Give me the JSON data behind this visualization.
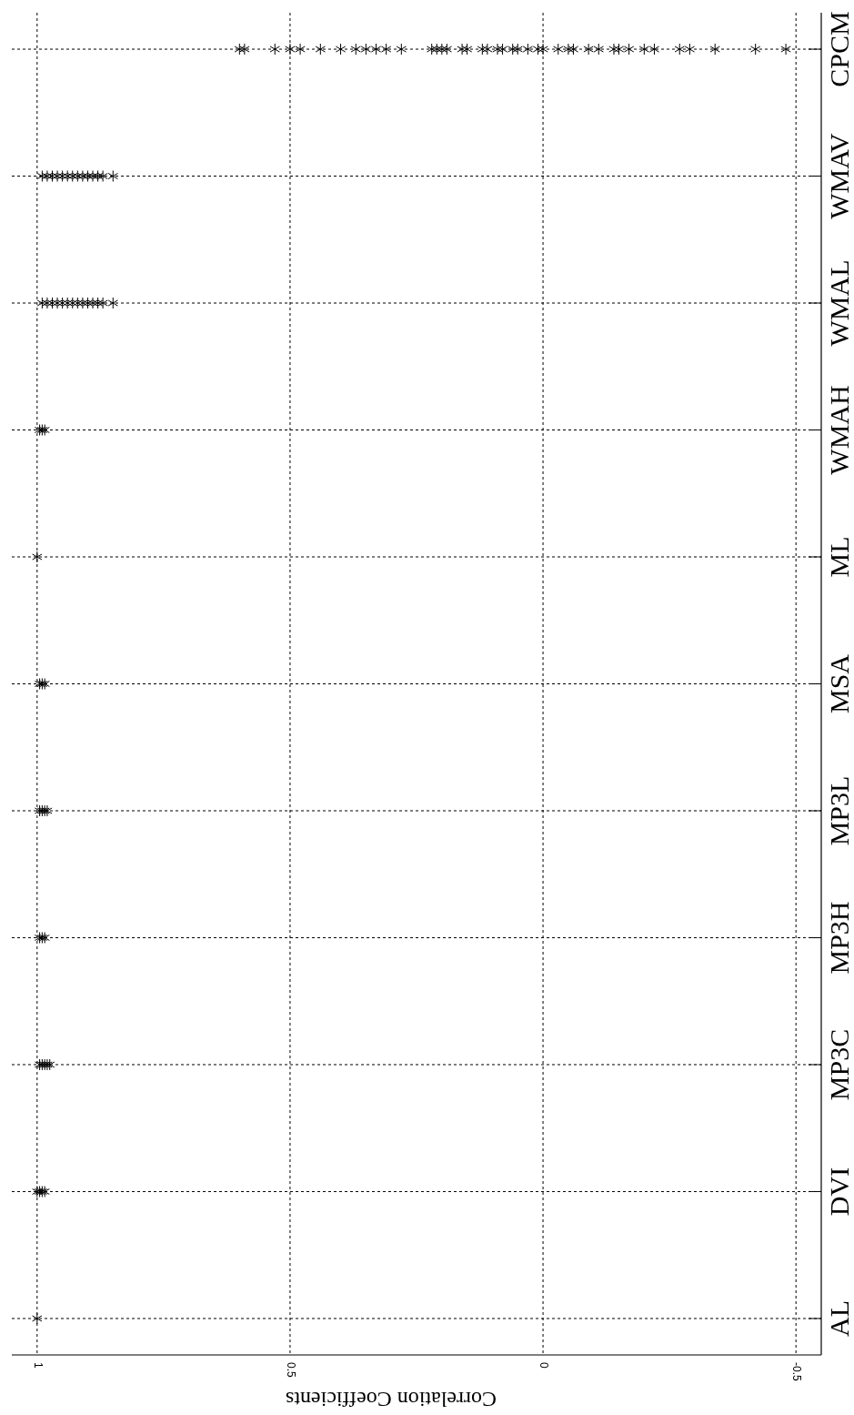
{
  "chart_data": {
    "type": "scatter",
    "orientation": "horizontal",
    "xlabel": "Correlation Coefficients",
    "categories": [
      "CPCM",
      "WMAV",
      "WMAL",
      "WMAH",
      "ML",
      "MSA",
      "MP3L",
      "MP3H",
      "MP3C",
      "DVI",
      "AL"
    ],
    "xlim": [
      1.05,
      -0.55
    ],
    "xticks": [
      1,
      0.5,
      0,
      -0.5
    ],
    "grid": true,
    "marker": "cross",
    "series": [
      {
        "color": "#000000",
        "x": [
          "AL",
          "DVI",
          "DVI",
          "DVI",
          "DVI",
          "MP3C",
          "MP3C",
          "MP3C",
          "MP3C",
          "MP3C",
          "MP3H",
          "MP3H",
          "MP3H",
          "MP3L",
          "MP3L",
          "MP3L",
          "MP3L",
          "MSA",
          "MSA",
          "MSA",
          "ML",
          "WMAH",
          "WMAH",
          "WMAH",
          "WMAL",
          "WMAL",
          "WMAL",
          "WMAL",
          "WMAL",
          "WMAL",
          "WMAL",
          "WMAL",
          "WMAL",
          "WMAL",
          "WMAL",
          "WMAL",
          "WMAL",
          "WMAL",
          "WMAV",
          "WMAV",
          "WMAV",
          "WMAV",
          "WMAV",
          "WMAV",
          "WMAV",
          "WMAV",
          "WMAV",
          "WMAV",
          "WMAV",
          "WMAV",
          "WMAV",
          "WMAV",
          "CPCM",
          "CPCM",
          "CPCM",
          "CPCM",
          "CPCM",
          "CPCM",
          "CPCM",
          "CPCM",
          "CPCM",
          "CPCM",
          "CPCM",
          "CPCM",
          "CPCM",
          "CPCM",
          "CPCM",
          "CPCM",
          "CPCM",
          "CPCM",
          "CPCM",
          "CPCM",
          "CPCM",
          "CPCM",
          "CPCM",
          "CPCM",
          "CPCM",
          "CPCM",
          "CPCM",
          "CPCM",
          "CPCM",
          "CPCM",
          "CPCM",
          "CPCM",
          "CPCM",
          "CPCM",
          "CPCM",
          "CPCM",
          "CPCM",
          "CPCM",
          "CPCM",
          "CPCM",
          "CPCM",
          "CPCM"
        ],
        "values": [
          1.0,
          1.0,
          0.995,
          0.99,
          0.985,
          0.995,
          0.99,
          0.985,
          0.98,
          0.975,
          0.995,
          0.99,
          0.985,
          0.995,
          0.99,
          0.985,
          0.98,
          0.995,
          0.99,
          0.985,
          1.0,
          0.995,
          0.99,
          0.985,
          0.99,
          0.98,
          0.97,
          0.96,
          0.95,
          0.94,
          0.93,
          0.92,
          0.91,
          0.9,
          0.89,
          0.88,
          0.87,
          0.85,
          0.99,
          0.98,
          0.97,
          0.96,
          0.95,
          0.94,
          0.93,
          0.92,
          0.91,
          0.9,
          0.89,
          0.88,
          0.87,
          0.85,
          0.6,
          0.59,
          0.53,
          0.5,
          0.48,
          0.44,
          0.4,
          0.37,
          0.35,
          0.33,
          0.31,
          0.28,
          0.22,
          0.21,
          0.2,
          0.19,
          0.16,
          0.15,
          0.12,
          0.11,
          0.09,
          0.08,
          0.06,
          0.05,
          0.03,
          0.01,
          0.0,
          -0.03,
          -0.05,
          -0.06,
          -0.09,
          -0.11,
          -0.14,
          -0.15,
          -0.17,
          -0.2,
          -0.22,
          -0.27,
          -0.29,
          -0.34,
          -0.42,
          -0.48
        ]
      }
    ]
  }
}
